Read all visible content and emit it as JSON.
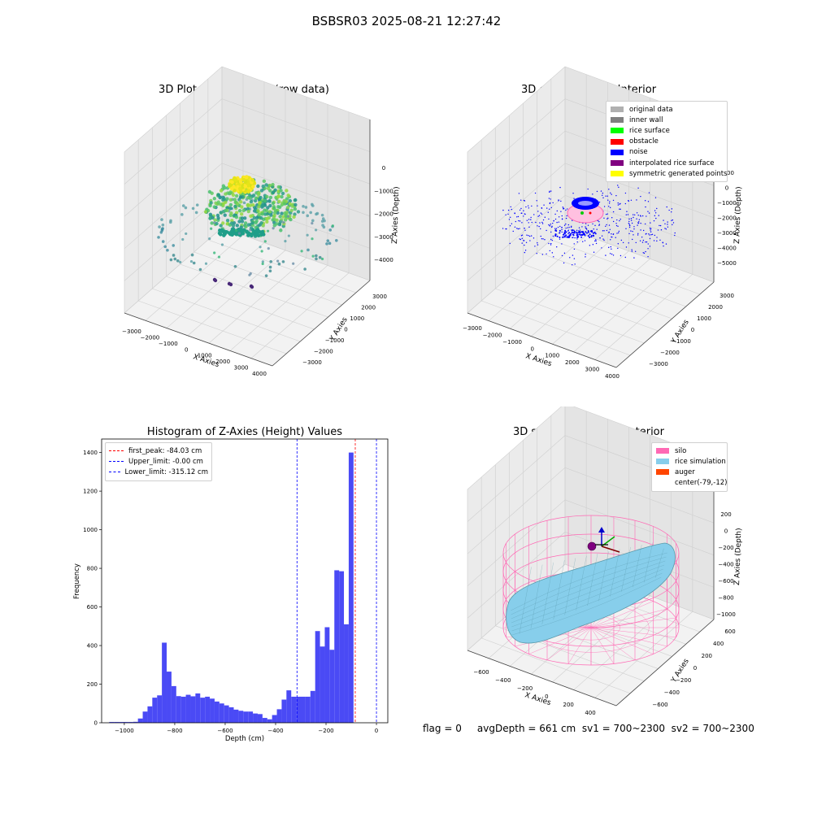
{
  "page": {
    "title": "BSBSR03 2025-08-21 12:27:42",
    "footer": "flag = 0     avgDepth = 661 cm  sv1 = 700~2300  sv2 = 700~2300"
  },
  "panel_raw": {
    "title": "3D Plot of Silo Interior(row data)",
    "xlabel": "X Axies",
    "ylabel": "Y Axies",
    "zlabel": "Z Axies (Depth)",
    "xticks": [
      "−3000",
      "−2000",
      "−1000",
      "0",
      "1000",
      "2000",
      "3000",
      "4000"
    ],
    "yticks": [
      "−3000",
      "−2000",
      "−1000",
      "0",
      "1000",
      "2000",
      "3000"
    ],
    "zticks": [
      "0",
      "−1000",
      "−2000",
      "−3000",
      "−4000"
    ]
  },
  "panel_classify": {
    "title": "3D classify of Silo Interior",
    "xlabel": "X Axies",
    "ylabel": "Y Axies",
    "zlabel": "Z Axies (Depth)",
    "xticks": [
      "−3000",
      "−2000",
      "−1000",
      "0",
      "1000",
      "2000",
      "3000",
      "4000"
    ],
    "yticks": [
      "−3000",
      "−2000",
      "−1000",
      "0",
      "1000",
      "2000",
      "3000"
    ],
    "zticks": [
      "1000",
      "0",
      "−1000",
      "−2000",
      "−3000",
      "−4000",
      "−5000"
    ],
    "legend": [
      {
        "label": "original data",
        "color": "#b0b0b0"
      },
      {
        "label": "inner wall",
        "color": "#808080"
      },
      {
        "label": "rice surface",
        "color": "#00ff00"
      },
      {
        "label": "obstacle",
        "color": "#ff0000"
      },
      {
        "label": "noise",
        "color": "#0000ff"
      },
      {
        "label": "interpolated rice surface",
        "color": "#800080"
      },
      {
        "label": "symmetric generated points",
        "color": "#ffff00"
      }
    ]
  },
  "panel_sim": {
    "title": "3D simulation of Silo Interior",
    "xlabel": "X Axies",
    "ylabel": "Y Axies",
    "zlabel": "Z Axies (Depth)",
    "xticks": [
      "−600",
      "−400",
      "−200",
      "0",
      "200",
      "400"
    ],
    "yticks": [
      "−600",
      "−400",
      "−200",
      "0",
      "200",
      "400",
      "600"
    ],
    "zticks": [
      "200",
      "0",
      "−200",
      "−400",
      "−600",
      "−800",
      "−1000"
    ],
    "legend": [
      {
        "label": "silo",
        "color": "#ff69b4"
      },
      {
        "label": "rice simulation",
        "color": "#87ceeb"
      },
      {
        "label": "auger",
        "color": "#ff4500"
      },
      {
        "label": "center(-79,-12)",
        "color": ""
      }
    ],
    "colors": {
      "silo": "#ff69b4",
      "rice": "#87ceeb",
      "auger": "#ff4500"
    }
  },
  "chart_data": {
    "type": "bar",
    "title": "Histogram of Z-Axies (Height) Values",
    "xlabel": "Depth (cm)",
    "ylabel": "Frequency",
    "xlim": [
      -1090,
      45
    ],
    "ylim": [
      0,
      1470
    ],
    "xticks": [
      -1000,
      -800,
      -600,
      -400,
      -200,
      0
    ],
    "xtick_labels": [
      "−1000",
      "−800",
      "−600",
      "−400",
      "−200",
      "0"
    ],
    "yticks": [
      0,
      200,
      400,
      600,
      800,
      1000,
      1200,
      1400
    ],
    "bar_color": "#4a4af5",
    "bin_start": -1060,
    "bin_width": 19,
    "values": [
      4,
      4,
      4,
      4,
      4,
      5,
      22,
      58,
      85,
      130,
      142,
      415,
      265,
      190,
      138,
      135,
      145,
      137,
      152,
      130,
      135,
      125,
      110,
      100,
      90,
      80,
      68,
      62,
      58,
      58,
      48,
      45,
      25,
      18,
      40,
      70,
      120,
      168,
      135,
      135,
      135,
      135,
      165,
      475,
      395,
      495,
      378,
      790,
      785,
      510,
      1400
    ],
    "vlines": [
      {
        "label": "first_peak: -84.03 cm",
        "x": -84.03,
        "color": "#ff0000"
      },
      {
        "label": "Upper_limit: -0.00 cm",
        "x": -0.0,
        "color": "#0000ff"
      },
      {
        "label": "Lower_limit: -315.12 cm",
        "x": -315.12,
        "color": "#0000ff"
      }
    ]
  }
}
